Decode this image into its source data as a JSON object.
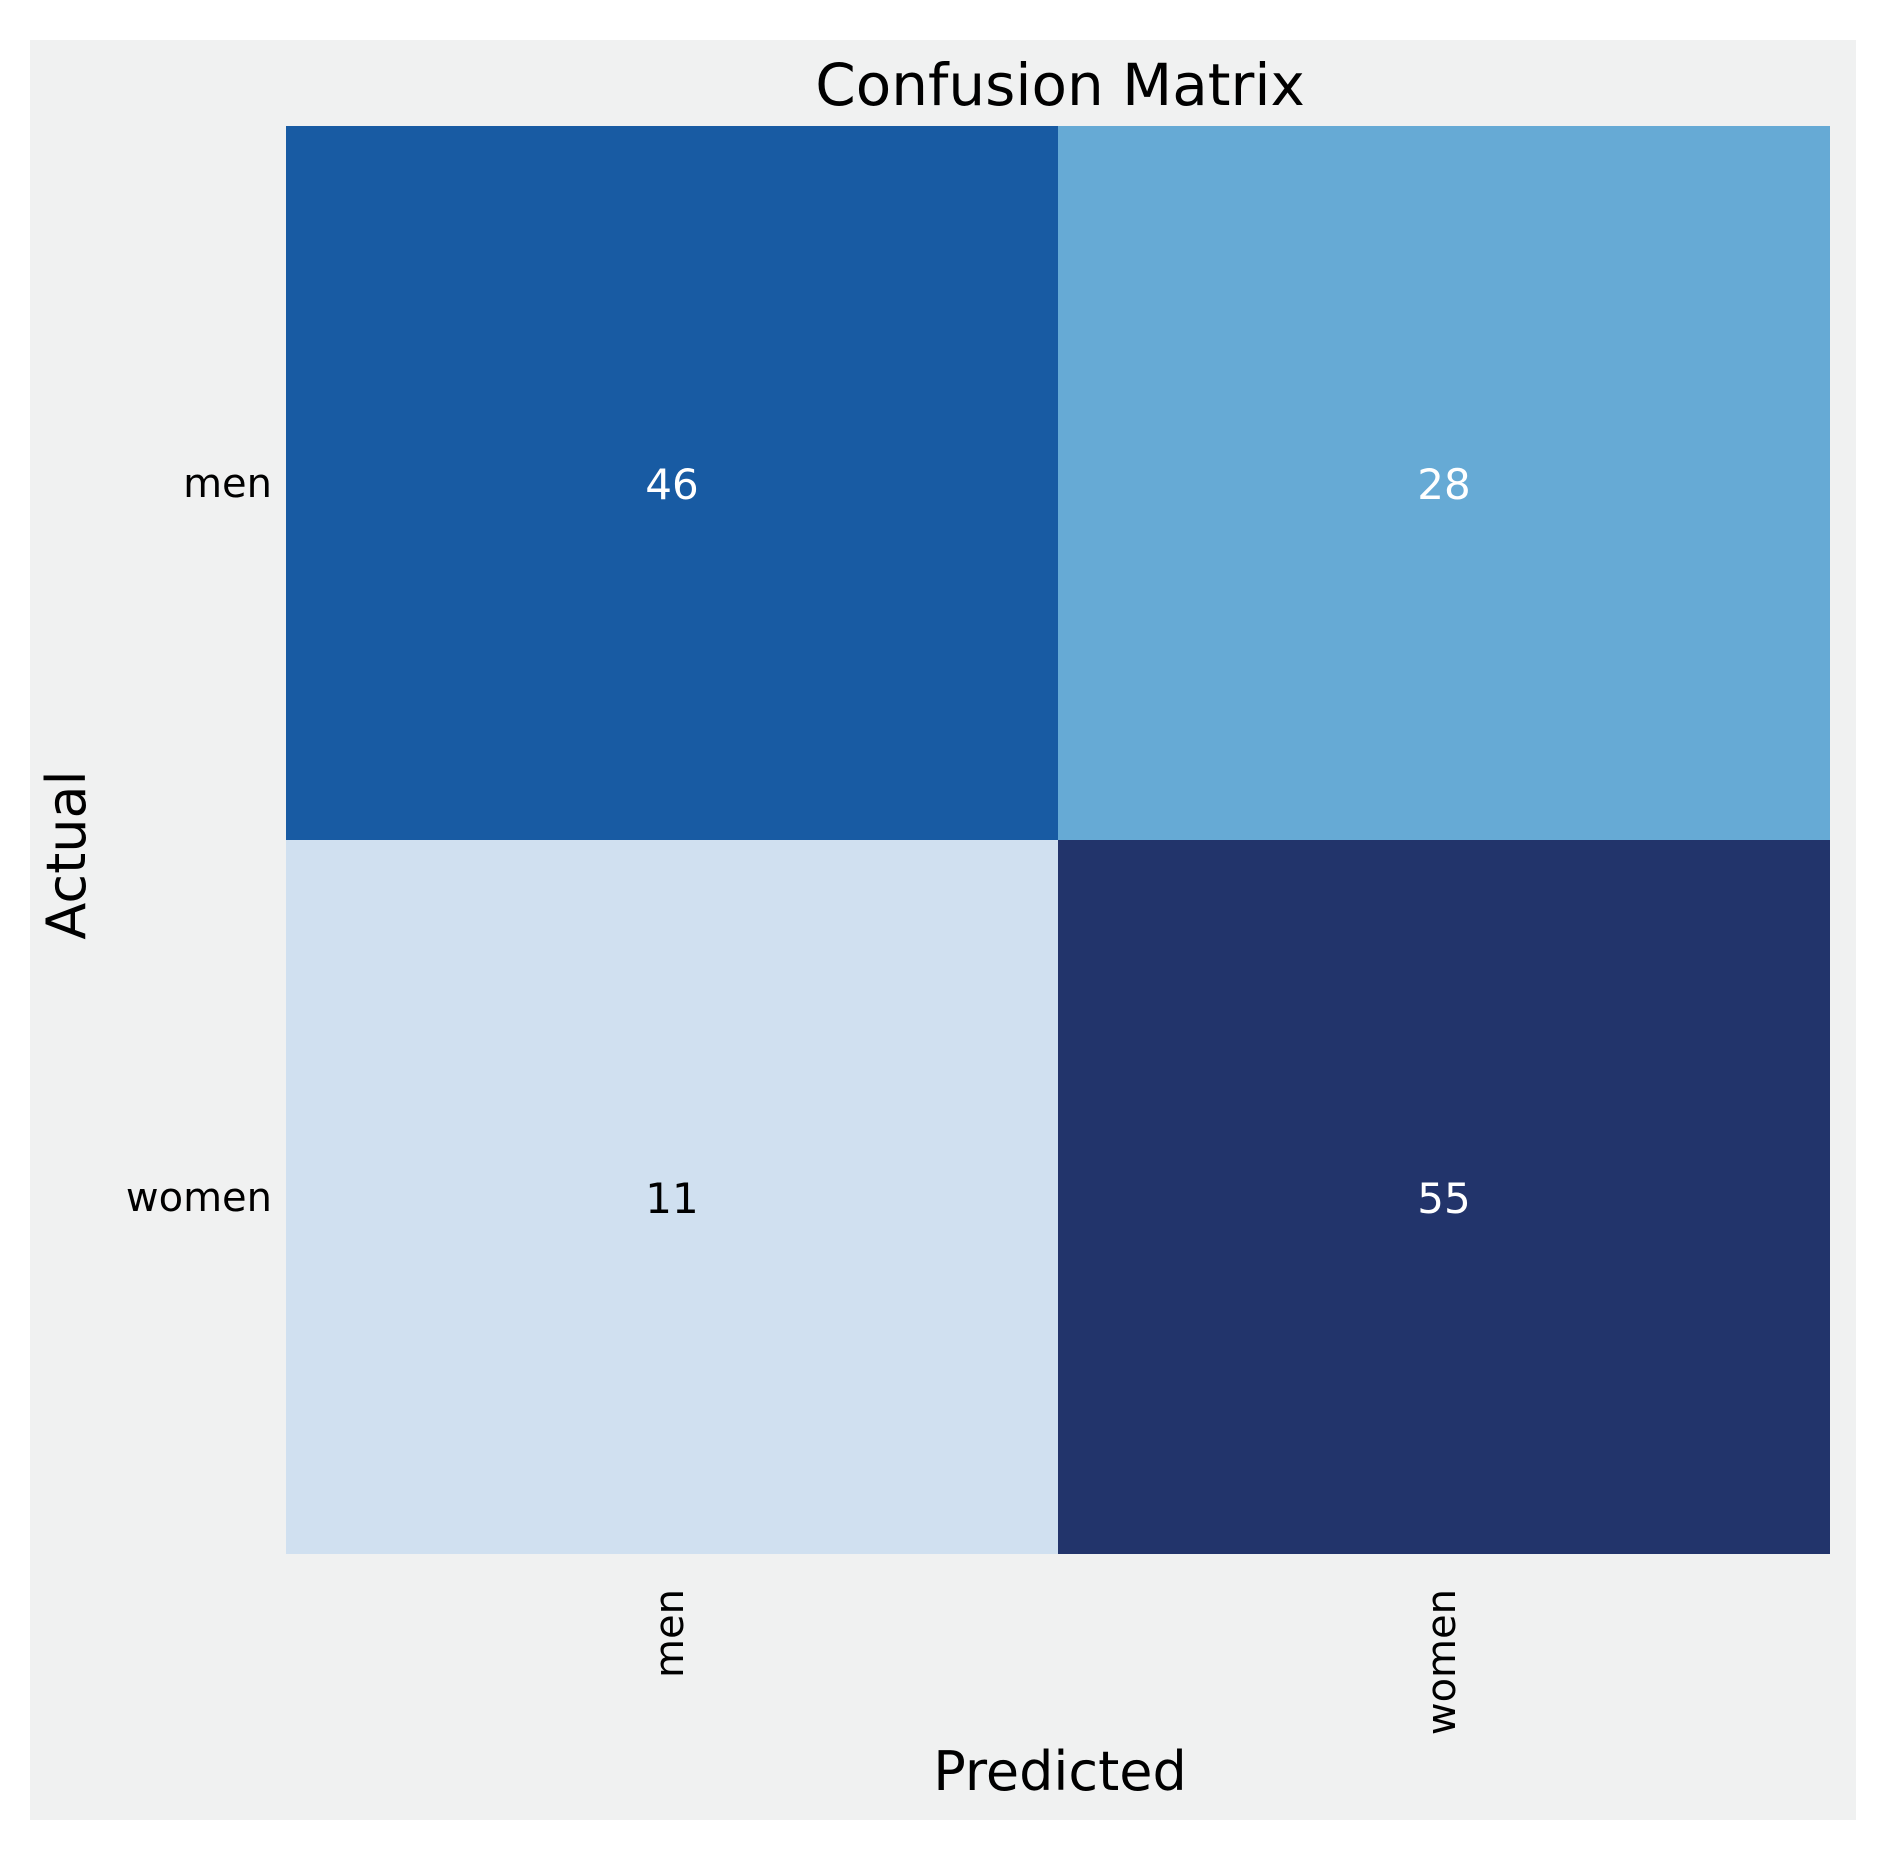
{
  "chart_data": {
    "type": "heatmap",
    "title": "Confusion Matrix",
    "xlabel": "Predicted",
    "ylabel": "Actual",
    "x_categories": [
      "men",
      "women"
    ],
    "y_categories": [
      "men",
      "women"
    ],
    "values": [
      [
        46,
        28
      ],
      [
        11,
        55
      ]
    ],
    "colors": {
      "figure_background": "#f0f1f1",
      "cells": [
        [
          "#185ba3",
          "#66aad5"
        ],
        [
          "#d0e0f0",
          "#22346b"
        ]
      ],
      "label_text_dark": "#000000",
      "label_text_light": "#ffffff"
    },
    "grid": false,
    "colorbar": false
  }
}
